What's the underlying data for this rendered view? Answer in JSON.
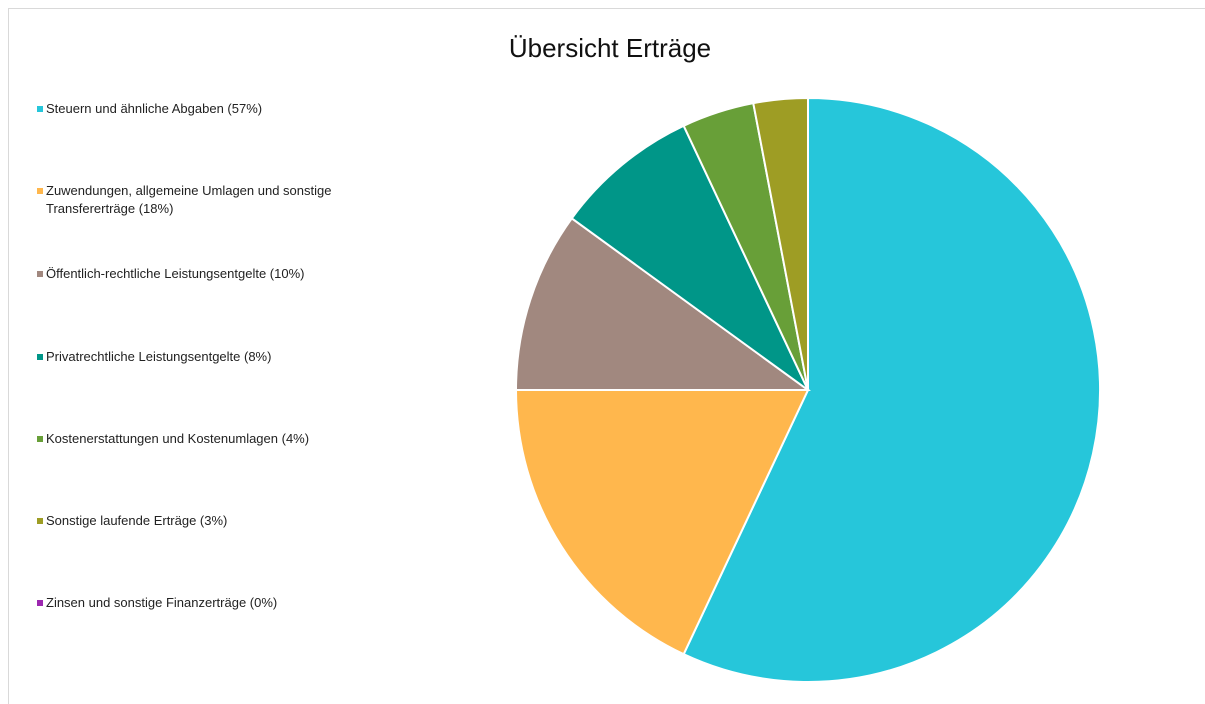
{
  "chart_data": {
    "type": "pie",
    "title": "Übersicht Erträge",
    "categories": [
      "Steuern und ähnliche Abgaben (57%)",
      "Zuwendungen, allgemeine Umlagen und sonstige Transfererträge (18%)",
      "Öffentlich-rechtliche Leistungsentgelte (10%)",
      "Privatrechtliche Leistungsentgelte (8%)",
      "Kostenerstattungen und Kostenumlagen (4%)",
      "Sonstige laufende Erträge (3%)",
      "Zinsen und sonstige Finanzerträge (0%)"
    ],
    "values": [
      57,
      18,
      10,
      8,
      4,
      3,
      0
    ],
    "colors": [
      "#26c6da",
      "#ffb74d",
      "#a1887f",
      "#009688",
      "#689f38",
      "#9e9d24",
      "#9c27b0"
    ],
    "legend": "left"
  }
}
